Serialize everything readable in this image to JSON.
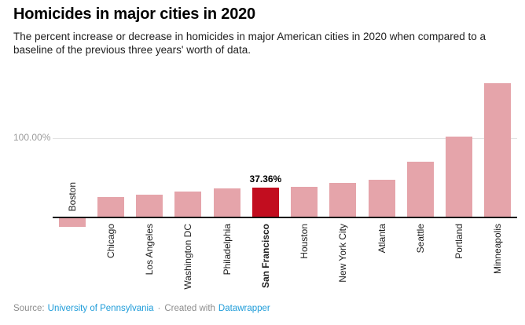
{
  "header": {
    "title": "Homicides in major cities in 2020",
    "subtitle": "The percent increase or decrease in homicides in major American cities in 2020 when compared to a baseline of the previous three years' worth of data."
  },
  "axis": {
    "y_tick_label": "100.00%"
  },
  "chart_data": {
    "type": "bar",
    "title": "Homicides in major cities in 2020",
    "categories": [
      "Boston",
      "Chicago",
      "Los Angeles",
      "Washington DC",
      "Philadelphia",
      "San Francisco",
      "Houston",
      "New York City",
      "Atlanta",
      "Seattle",
      "Portland",
      "Minneapolis"
    ],
    "values": [
      -11.4,
      26.0,
      28.9,
      32.7,
      36.9,
      37.36,
      38.9,
      44.0,
      47.5,
      70.5,
      102.0,
      169.5
    ],
    "unit": "%",
    "xlabel": "",
    "ylabel": "",
    "ylim": [
      -15,
      180
    ],
    "gridlines": [
      100
    ],
    "highlight_category": "San Francisco",
    "highlight_value_label": "37.36%",
    "colors": {
      "bar": "#e5a4aa",
      "highlight": "#c20d1f",
      "gridline": "#e3e3e3",
      "baseline": "#121212"
    },
    "legend": "none"
  },
  "footer": {
    "source_prefix": "Source:",
    "source_link": "University of Pennsylvania",
    "separator": "·",
    "created_with": "Created with",
    "tool_link": "Datawrapper"
  }
}
